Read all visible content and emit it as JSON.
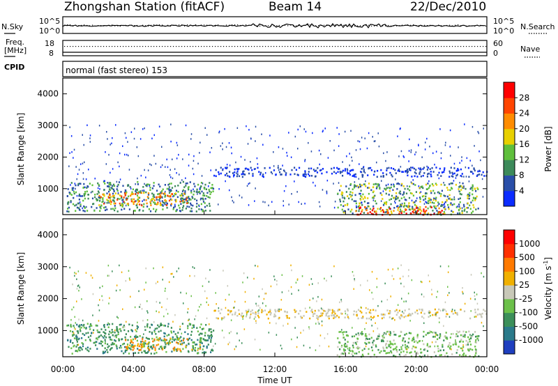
{
  "header": {
    "station": "Zhongshan Station (fitACF)",
    "beam": "Beam 14",
    "date": "22/Dec/2010"
  },
  "info_panels": {
    "nsky_label": "N.Sky",
    "nsearch_label": "N.Search",
    "noise_ticks_left": [
      "10^5",
      "10^0"
    ],
    "noise_ticks_right": [
      "10^5",
      "10^0"
    ],
    "freq_label_1": "Freq.",
    "freq_label_2": "[MHz]",
    "freq_ticks": [
      "18",
      "8"
    ],
    "nave_label": "Nave",
    "nave_ticks": [
      "60",
      "0"
    ],
    "cpid_label": "CPID",
    "cpid_text": "normal (fast stereo) 153"
  },
  "chart_data": [
    {
      "type": "heatmap",
      "name": "power",
      "ylabel": "Slant Range [km]",
      "xlabel": "",
      "xlim": [
        0,
        24
      ],
      "ylim": [
        180,
        4500
      ],
      "y_ticks": [
        "1000",
        "2000",
        "3000",
        "4000"
      ],
      "colorbar_label": "Power [dB]",
      "colorbar_ticks": [
        "4",
        "8",
        "12",
        "16",
        "20",
        "24",
        "28"
      ],
      "colorbar_colors": [
        "#0b2cff",
        "#2a4fa8",
        "#3d8a5a",
        "#5fbf3c",
        "#e8d000",
        "#ff8c00",
        "#ff4500",
        "#ff0000"
      ],
      "regions": [
        {
          "t0": 0.2,
          "t1": 8.5,
          "r0": 300,
          "r1": 1250,
          "level": "low-mid"
        },
        {
          "t0": 2.0,
          "t1": 7.0,
          "r0": 500,
          "r1": 900,
          "level": "high"
        },
        {
          "t0": 8.5,
          "t1": 24.0,
          "r0": 1400,
          "r1": 1700,
          "level": "low"
        },
        {
          "t0": 15.5,
          "t1": 23.5,
          "r0": 200,
          "r1": 1200,
          "level": "mid"
        },
        {
          "t0": 16.5,
          "t1": 21.5,
          "r0": 200,
          "r1": 450,
          "level": "max"
        }
      ]
    },
    {
      "type": "heatmap",
      "name": "velocity",
      "ylabel": "Slant Range [km]",
      "xlabel": "Time UT",
      "xlim": [
        0,
        24
      ],
      "ylim": [
        180,
        4500
      ],
      "x_ticks": [
        "00:00",
        "04:00",
        "08:00",
        "12:00",
        "16:00",
        "20:00",
        "00:00"
      ],
      "y_ticks": [
        "1000",
        "2000",
        "3000",
        "4000"
      ],
      "colorbar_label": "Velocity [m s-1]",
      "colorbar_ticks": [
        "1000",
        "500",
        "100",
        "25",
        "-25",
        "-100",
        "-500",
        "-1000"
      ],
      "colorbar_colors": [
        "#1f3fbf",
        "#2b7a8a",
        "#3c8f5a",
        "#6cc04a",
        "#c8c8b8",
        "#f0b000",
        "#ff7a00",
        "#ff3000",
        "#ff0000"
      ],
      "regions": [
        {
          "t0": 0.2,
          "t1": 8.5,
          "r0": 300,
          "r1": 1250,
          "level": "green"
        },
        {
          "t0": 3.5,
          "t1": 8.0,
          "r0": 400,
          "r1": 800,
          "level": "orange"
        },
        {
          "t0": 8.5,
          "t1": 24.0,
          "r0": 1400,
          "r1": 1700,
          "level": "gray"
        },
        {
          "t0": 15.5,
          "t1": 23.5,
          "r0": 200,
          "r1": 1000,
          "level": "green-light"
        }
      ]
    }
  ]
}
